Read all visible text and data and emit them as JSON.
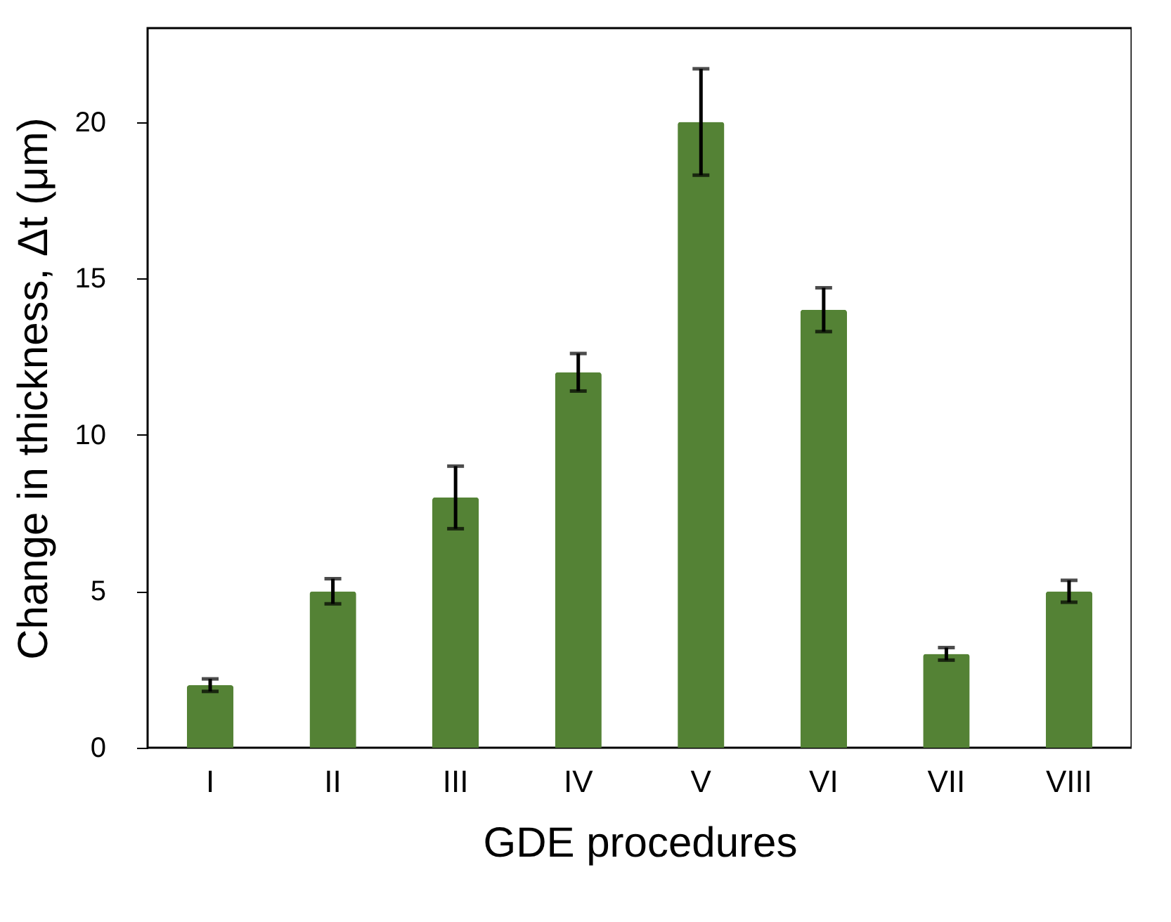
{
  "chart_data": {
    "type": "bar",
    "xlabel": "GDE procedures",
    "ylabel": "Change in thickness, Δt (μm)",
    "categories": [
      "I",
      "II",
      "III",
      "IV",
      "V",
      "VI",
      "VII",
      "VIII"
    ],
    "values": [
      2,
      5,
      8,
      12,
      20,
      14,
      3,
      5
    ],
    "errors": [
      0.2,
      0.4,
      1,
      0.6,
      1.7,
      0.7,
      0.2,
      0.35
    ],
    "color": "#548235",
    "ylim": [
      0,
      23
    ],
    "yticks": [
      0,
      5,
      10,
      15,
      20
    ],
    "grid": false
  }
}
